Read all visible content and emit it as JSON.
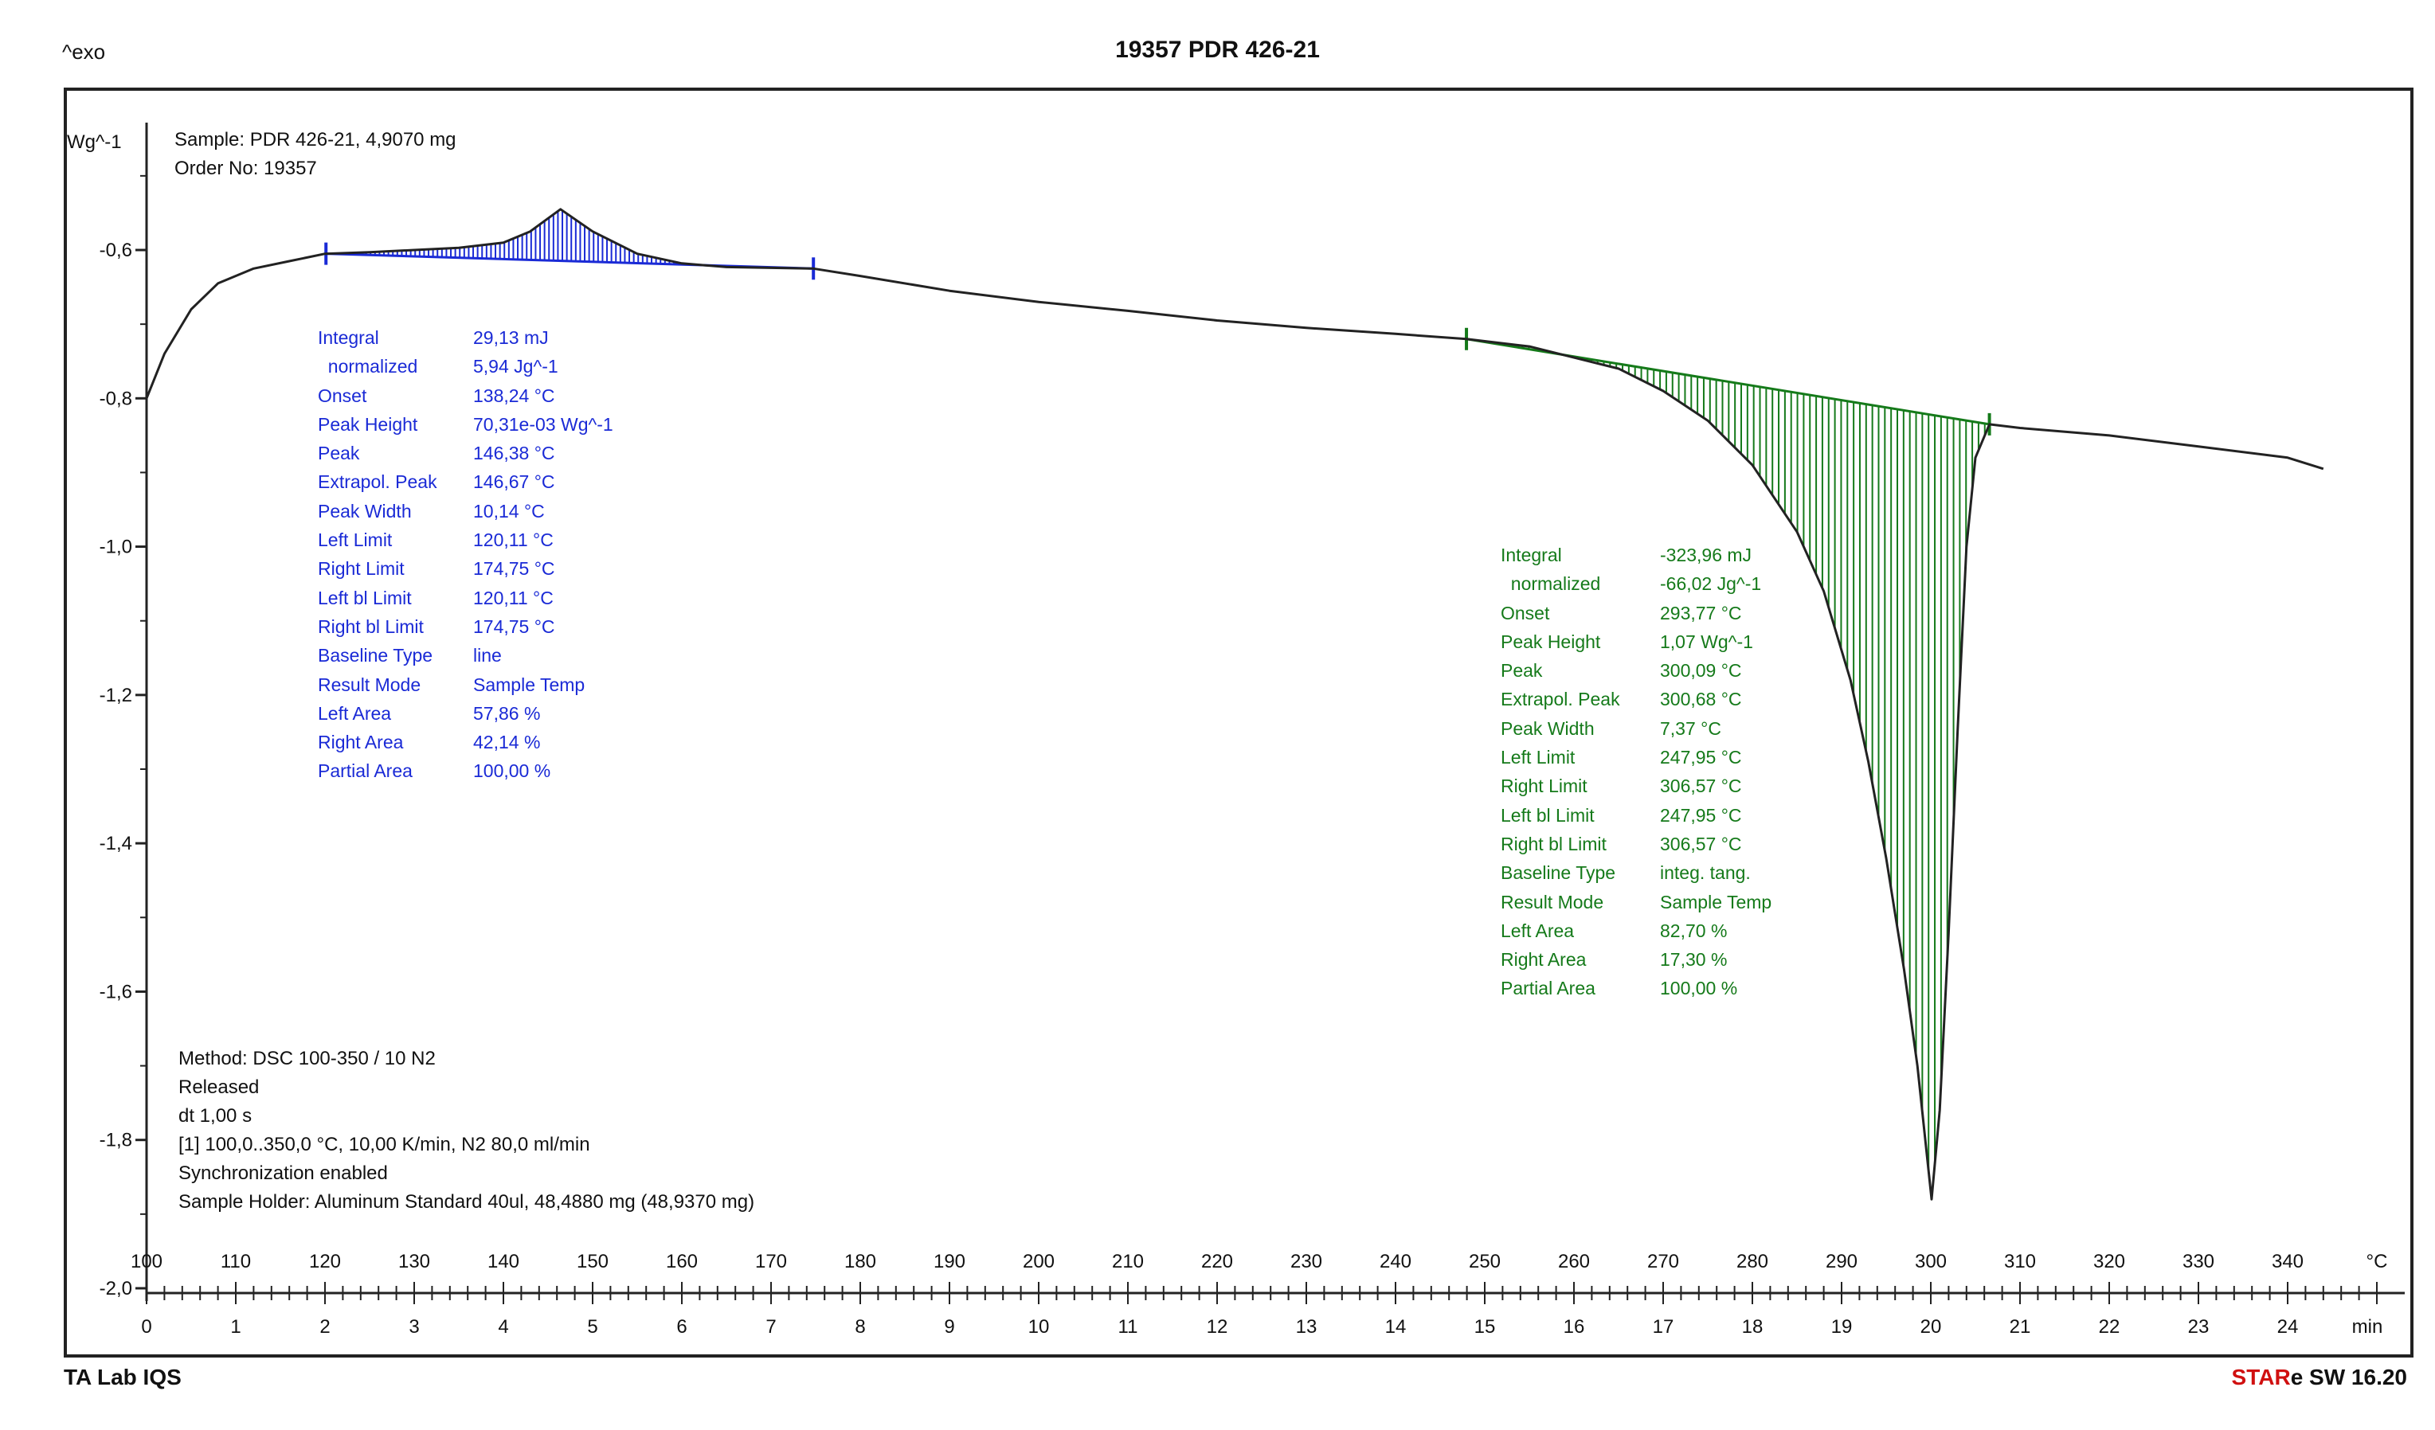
{
  "header": {
    "exo_label": "^exo",
    "title": "19357 PDR 426-21"
  },
  "sample": {
    "line1": "Sample: PDR 426-21, 4,9070 mg",
    "line2": "Order No: 19357"
  },
  "method": {
    "lines": [
      "Method: DSC 100-350 / 10 N2",
      "Released",
      "dt 1,00 s",
      "[1] 100,0..350,0 °C, 10,00 K/min, N2 80,0 ml/min",
      "Synchronization enabled",
      "Sample Holder: Aluminum Standard 40ul, 48,4880 mg (48,9370 mg)"
    ]
  },
  "footer": {
    "left": "TA Lab IQS",
    "right_star": "STAR",
    "right_rest": "e SW 16.20"
  },
  "colors": {
    "curve": "#222222",
    "peak1": "#1a2ad6",
    "peak2": "#157a1a"
  },
  "peak1_results": [
    [
      "Integral",
      "29,13 mJ"
    ],
    [
      "  normalized",
      "5,94 Jg^-1"
    ],
    [
      "Onset",
      "138,24 °C"
    ],
    [
      "Peak Height",
      "70,31e-03 Wg^-1"
    ],
    [
      "Peak",
      "146,38 °C"
    ],
    [
      "Extrapol. Peak",
      "146,67 °C"
    ],
    [
      "Peak Width",
      "10,14 °C"
    ],
    [
      "Left Limit",
      "120,11 °C"
    ],
    [
      "Right Limit",
      "174,75 °C"
    ],
    [
      "Left bl Limit",
      "120,11 °C"
    ],
    [
      "Right bl Limit",
      "174,75 °C"
    ],
    [
      "Baseline Type",
      "line"
    ],
    [
      "Result Mode",
      "Sample Temp"
    ],
    [
      "Left Area",
      "57,86 %"
    ],
    [
      "Right Area",
      "42,14 %"
    ],
    [
      "Partial Area",
      "100,00 %"
    ]
  ],
  "peak2_results": [
    [
      "Integral",
      "-323,96 mJ"
    ],
    [
      "  normalized",
      "-66,02 Jg^-1"
    ],
    [
      "Onset",
      "293,77 °C"
    ],
    [
      "Peak Height",
      "1,07 Wg^-1"
    ],
    [
      "Peak",
      "300,09 °C"
    ],
    [
      "Extrapol. Peak",
      "300,68 °C"
    ],
    [
      "Peak Width",
      "7,37 °C"
    ],
    [
      "Left Limit",
      "247,95 °C"
    ],
    [
      "Right Limit",
      "306,57 °C"
    ],
    [
      "Left bl Limit",
      "247,95 °C"
    ],
    [
      "Right bl Limit",
      "306,57 °C"
    ],
    [
      "Baseline Type",
      "integ. tang."
    ],
    [
      "Result Mode",
      "Sample Temp"
    ],
    [
      "Left Area",
      "82,70 %"
    ],
    [
      "Right Area",
      "17,30 %"
    ],
    [
      "Partial Area",
      "100,00 %"
    ]
  ],
  "chart_data": {
    "type": "line",
    "ylabel": "Wg^-1",
    "y_ticks": [
      "-0,6",
      "-0,8",
      "-1,0",
      "-1,2",
      "-1,4",
      "-1,6",
      "-1,8",
      "-2,0"
    ],
    "ylim": [
      -2.0,
      -0.4
    ],
    "temp_ticks": [
      "100",
      "110",
      "120",
      "130",
      "140",
      "150",
      "160",
      "170",
      "180",
      "190",
      "200",
      "210",
      "220",
      "230",
      "240",
      "250",
      "260",
      "270",
      "280",
      "290",
      "300",
      "310",
      "320",
      "330",
      "340"
    ],
    "temp_unit": "°C",
    "time_ticks": [
      "0",
      "1",
      "2",
      "3",
      "4",
      "5",
      "6",
      "7",
      "8",
      "9",
      "10",
      "11",
      "12",
      "13",
      "14",
      "15",
      "16",
      "17",
      "18",
      "19",
      "20",
      "21",
      "22",
      "23",
      "24"
    ],
    "time_unit": "min",
    "xlim_temp": [
      100,
      350
    ],
    "series": [
      {
        "x": [
          100,
          102,
          105,
          108,
          112,
          116,
          120,
          125,
          130,
          135,
          140,
          143,
          146.4,
          150,
          155,
          160,
          165,
          170,
          174.75,
          180,
          190,
          200,
          210,
          220,
          230,
          240,
          247.95,
          255,
          260,
          265,
          270,
          275,
          280,
          285,
          288,
          291,
          293,
          295,
          297,
          298.5,
          300.09,
          301,
          302,
          303,
          304,
          305,
          306.57,
          310,
          320,
          330,
          340,
          344
        ],
        "y": [
          -0.8,
          -0.74,
          -0.68,
          -0.645,
          -0.625,
          -0.615,
          -0.605,
          -0.603,
          -0.6,
          -0.597,
          -0.59,
          -0.575,
          -0.545,
          -0.575,
          -0.605,
          -0.618,
          -0.623,
          -0.624,
          -0.625,
          -0.635,
          -0.655,
          -0.67,
          -0.682,
          -0.695,
          -0.705,
          -0.713,
          -0.72,
          -0.73,
          -0.745,
          -0.76,
          -0.79,
          -0.83,
          -0.89,
          -0.98,
          -1.06,
          -1.18,
          -1.29,
          -1.42,
          -1.57,
          -1.7,
          -1.88,
          -1.76,
          -1.52,
          -1.25,
          -1.0,
          -0.88,
          -0.835,
          -0.84,
          -0.85,
          -0.865,
          -0.88,
          -0.895
        ]
      }
    ],
    "peaks": [
      {
        "left": 120.11,
        "right": 174.75,
        "baseline": "line"
      },
      {
        "left": 247.95,
        "right": 306.57,
        "baseline": "integ. tang."
      }
    ]
  }
}
